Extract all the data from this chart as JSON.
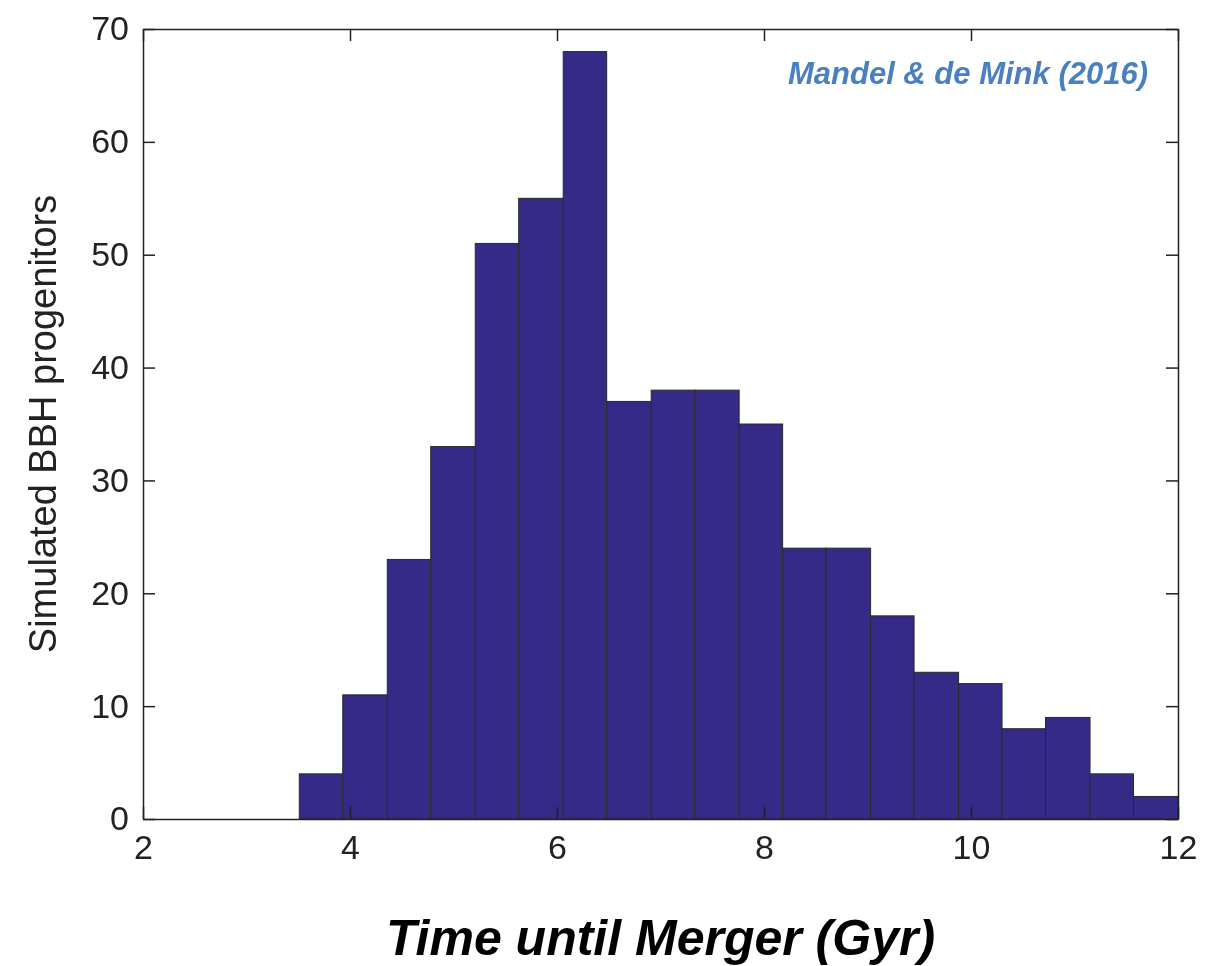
{
  "chart_data": {
    "type": "histogram",
    "xlabel": "Time until Merger (Gyr)",
    "ylabel": "Simulated BBH progenitors",
    "annotations": [
      "Mandel & de Mink (2016)"
    ],
    "bins": [
      3.51,
      3.93,
      4.36,
      4.78,
      5.21,
      5.63,
      6.06,
      6.48,
      6.91,
      7.33,
      7.76,
      8.18,
      8.6,
      9.03,
      9.45,
      9.88,
      10.3,
      10.72,
      11.15,
      11.57,
      12.0
    ],
    "values": [
      4,
      11,
      23,
      33,
      51,
      55,
      68,
      37,
      38,
      38,
      35,
      24,
      24,
      18,
      13,
      12,
      8,
      9,
      4,
      2
    ],
    "color": "#352a87",
    "xlim": [
      2,
      12
    ],
    "xticks": [
      2,
      4,
      6,
      8,
      10,
      12
    ],
    "ylim": [
      0,
      70
    ],
    "yticks": [
      0,
      10,
      20,
      30,
      40,
      50,
      60,
      70
    ],
    "grid": false
  }
}
